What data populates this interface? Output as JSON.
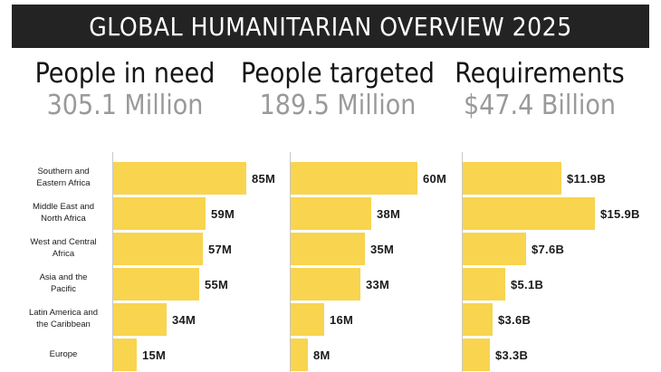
{
  "title": "GLOBAL HUMANITARIAN OVERVIEW 2025",
  "stats": [
    {
      "label": "People in need",
      "value": "305.1 Million"
    },
    {
      "label": "People targeted",
      "value": "189.5 Million"
    },
    {
      "label": "Requirements",
      "value": "$47.4 Billion"
    }
  ],
  "colors": {
    "bar": "#f8d44f",
    "title_bg": "#232323",
    "stat_value": "#9a9a9a"
  },
  "chart_data": {
    "type": "bar",
    "orientation": "horizontal",
    "categories": [
      "Southern and Eastern Africa",
      "Middle East and North Africa",
      "West and Central Africa",
      "Asia and the Pacific",
      "Latin America and the Caribbean",
      "Europe"
    ],
    "category_lines": [
      [
        "Southern and",
        "Eastern Africa"
      ],
      [
        "Middle East and",
        "North Africa"
      ],
      [
        "West and Central",
        "Africa"
      ],
      [
        "Asia and the",
        "Pacific"
      ],
      [
        "Latin America and",
        "the Caribbean"
      ],
      [
        "Europe"
      ]
    ],
    "series": [
      {
        "name": "People in need",
        "values": [
          85,
          59,
          57,
          55,
          34,
          15
        ],
        "labels": [
          "85M",
          "59M",
          "57M",
          "55M",
          "34M",
          "15M"
        ]
      },
      {
        "name": "People targeted",
        "values": [
          60,
          38,
          35,
          33,
          16,
          8
        ],
        "labels": [
          "60M",
          "38M",
          "35M",
          "33M",
          "16M",
          "8M"
        ]
      },
      {
        "name": "Requirements",
        "values": [
          11.9,
          15.9,
          7.6,
          5.1,
          3.6,
          3.3
        ],
        "labels": [
          "$11.9B",
          "$15.9B",
          "$7.6B",
          "$5.1B",
          "$3.6B",
          "$3.3B"
        ]
      }
    ]
  }
}
